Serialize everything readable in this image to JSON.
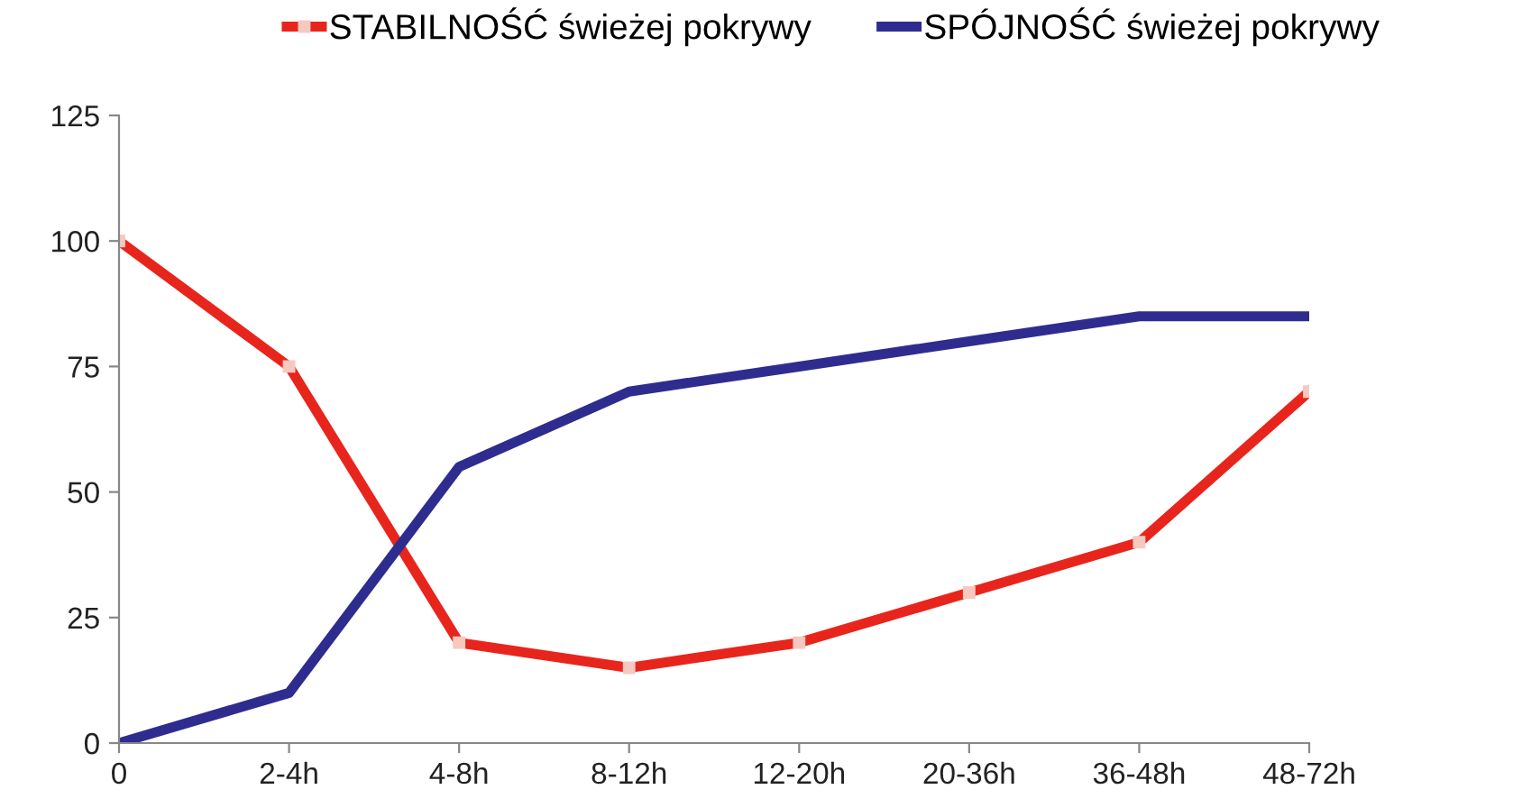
{
  "chart_data": {
    "type": "line",
    "categories": [
      "0",
      "2-4h",
      "4-8h",
      "8-12h",
      "12-20h",
      "20-36h",
      "36-48h",
      "48-72h"
    ],
    "series": [
      {
        "name": "STABILNOŚĆ świeżej pokrywy",
        "color": "#e8251c",
        "marker": "square",
        "values": [
          100,
          75,
          20,
          15,
          20,
          30,
          40,
          70
        ]
      },
      {
        "name": "SPÓJNOŚĆ świeżej pokrywy",
        "color": "#2e2d8f",
        "values": [
          0,
          10,
          55,
          70,
          75,
          80,
          85,
          85
        ]
      }
    ],
    "ylim": [
      0,
      125
    ],
    "yticks": [
      0,
      25,
      50,
      75,
      100,
      125
    ],
    "grid": false,
    "legend": "top"
  }
}
